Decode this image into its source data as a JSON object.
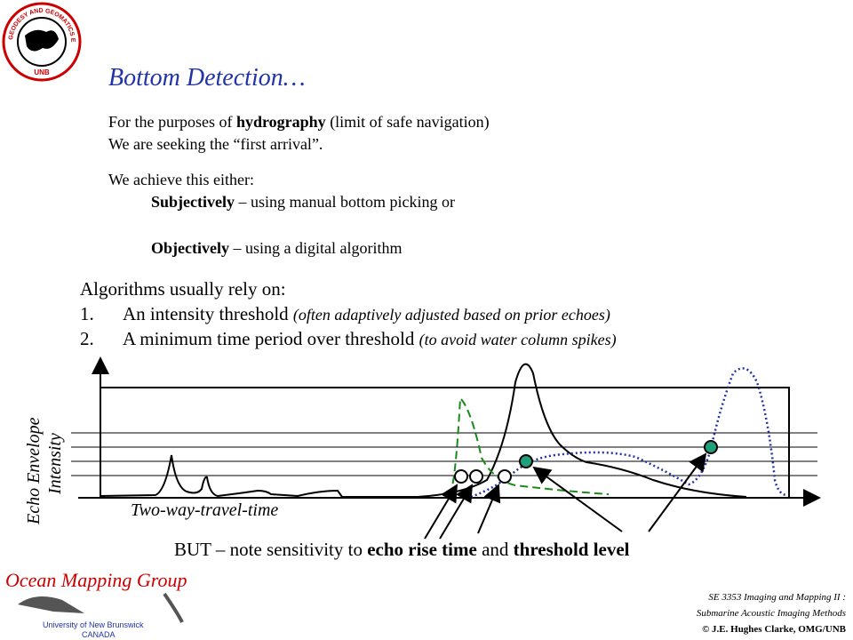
{
  "logo": {
    "ring_text": "GEODESY AND GEOMATICS ENGINEERING",
    "center_text": "UNB"
  },
  "title": "Bottom Detection…",
  "intro": {
    "line1": {
      "before": "For the purposes of ",
      "bold": "hydrography",
      "after": " (limit of safe navigation)"
    },
    "line2": "We are seeking the “first arrival”."
  },
  "approach": {
    "lead": "We achieve this either:",
    "items": [
      {
        "bold": "Subjectively",
        "text": " – using manual bottom picking or"
      },
      {
        "bold": "Objectively",
        "text": " – using a digital algorithm"
      }
    ]
  },
  "algorithms": {
    "lead": "Algorithms usually rely on:",
    "items": [
      {
        "number": "1.",
        "text": "An intensity threshold ",
        "note": "(often adaptively adjusted based on prior echoes)"
      },
      {
        "number": "2.",
        "text": "A minimum time period over threshold ",
        "note": "(to avoid water column spikes)"
      }
    ]
  },
  "diagram": {
    "y_label_1": "Echo Envelope",
    "y_label_2": "Intensity",
    "x_label": "Two-way-travel-time"
  },
  "caption": {
    "before": "BUT – note sensitivity to ",
    "bold1": "echo rise time",
    "middle": " and ",
    "bold2": "threshold level"
  },
  "footer_logo": {
    "name": "Ocean Mapping Group",
    "university": "University of New Brunswick",
    "country": "CANADA"
  },
  "course": {
    "line1": "SE 3353 Imaging and Mapping II :",
    "line2": "Submarine Acoustic Imaging Methods",
    "line3": "© J.E. Hughes Clarke, OMG/UNB"
  }
}
